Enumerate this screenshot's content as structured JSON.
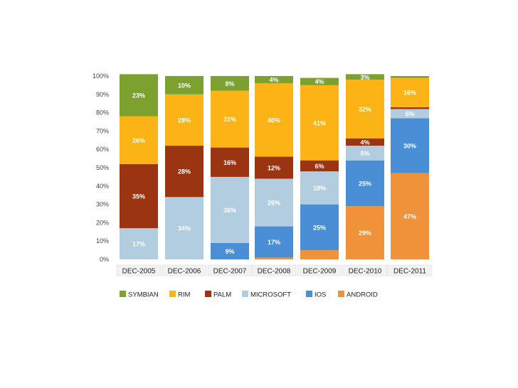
{
  "chart_data": {
    "type": "bar",
    "stacked": true,
    "categories": [
      "DEC-2005",
      "DEC-2006",
      "DEC-2007",
      "DEC-2008",
      "DEC-2009",
      "DEC-2010",
      "DEC-2011"
    ],
    "ylim": [
      0,
      100
    ],
    "yticks": [
      "0%",
      "10%",
      "20%",
      "30%",
      "40%",
      "50%",
      "60%",
      "70%",
      "80%",
      "90%",
      "100%"
    ],
    "legend_position": "bottom",
    "series": [
      {
        "name": "ANDROID",
        "color": "#f0923a",
        "values": [
          0,
          0,
          0,
          1,
          5,
          29,
          47
        ],
        "labels": [
          "",
          "",
          "",
          "",
          "",
          "29%",
          "47%"
        ]
      },
      {
        "name": "IOS",
        "color": "#4a8fd5",
        "values": [
          0,
          0,
          9,
          17,
          25,
          25,
          30
        ],
        "labels": [
          "",
          "",
          "9%",
          "17%",
          "25%",
          "25%",
          "30%"
        ]
      },
      {
        "name": "MICROSOFT",
        "color": "#b3cde0",
        "values": [
          17,
          34,
          36,
          26,
          18,
          8,
          5
        ],
        "labels": [
          "17%",
          "34%",
          "36%",
          "26%",
          "18%",
          "8%",
          "5%"
        ]
      },
      {
        "name": "PALM",
        "color": "#9b3410",
        "values": [
          35,
          28,
          16,
          12,
          6,
          4,
          1
        ],
        "labels": [
          "35%",
          "28%",
          "16%",
          "12%",
          "6%",
          "4%",
          ""
        ]
      },
      {
        "name": "RIM",
        "color": "#fbb315",
        "values": [
          26,
          28,
          31,
          40,
          41,
          32,
          16
        ],
        "labels": [
          "26%",
          "28%",
          "31%",
          "40%",
          "41%",
          "32%",
          "16%"
        ]
      },
      {
        "name": "SYMBIAN",
        "color": "#7ca12f",
        "values": [
          23,
          10,
          8,
          4,
          4,
          3,
          1
        ],
        "labels": [
          "23%",
          "10%",
          "8%",
          "4%",
          "4%",
          "3%",
          ""
        ]
      }
    ],
    "legend_order": [
      "SYMBIAN",
      "RIM",
      "PALM",
      "MICROSOFT",
      "IOS",
      "ANDROID"
    ]
  }
}
